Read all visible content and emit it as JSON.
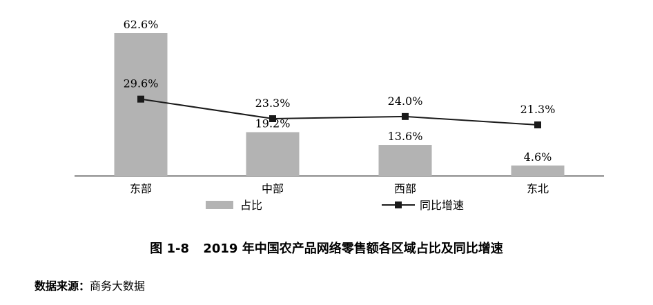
{
  "chart_data": {
    "type": "bar",
    "categories": [
      "东部",
      "中部",
      "西部",
      "东北"
    ],
    "series": [
      {
        "name": "占比",
        "type": "bar",
        "values": [
          62.6,
          19.2,
          13.6,
          4.6
        ],
        "labels": [
          "62.6%",
          "19.2%",
          "13.6%",
          "4.6%"
        ],
        "color": "#b3b3b3"
      },
      {
        "name": "同比增速",
        "type": "line",
        "values": [
          29.6,
          23.3,
          24.0,
          21.3
        ],
        "labels": [
          "29.6%",
          "23.3%",
          "24.0%",
          "21.3%"
        ],
        "color": "#1a1a1a"
      }
    ],
    "ylim": [
      0,
      62.6
    ],
    "legend_position": "bottom",
    "grid": false
  },
  "caption": {
    "figure_number": "图 1-8",
    "title": "2019 年中国农产品网络零售额各区域占比及同比增速"
  },
  "source": {
    "label": "数据来源：",
    "text": "商务大数据"
  }
}
